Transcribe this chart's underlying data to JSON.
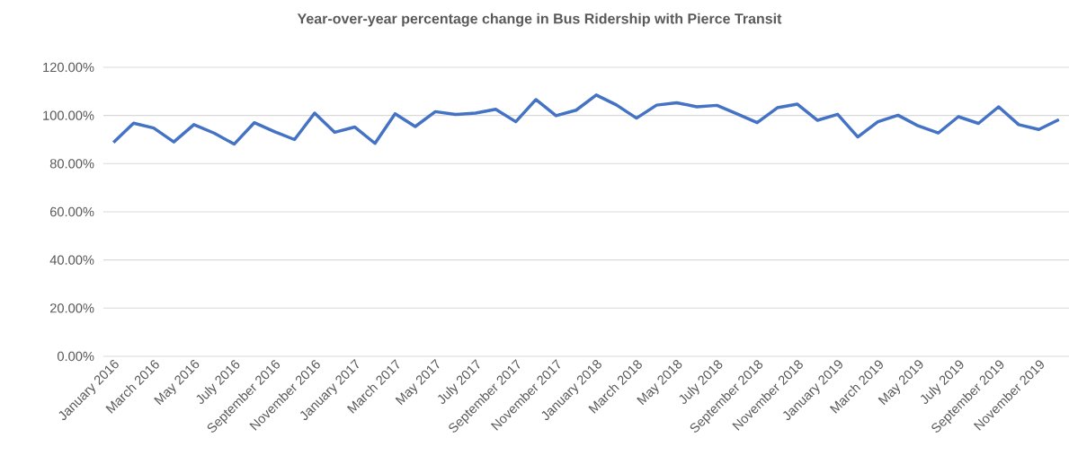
{
  "chart_data": {
    "type": "line",
    "title": "Year-over-year percentage change in Bus Ridership with Pierce Transit",
    "categories": [
      "January 2016",
      null,
      "March 2016",
      null,
      "May 2016",
      null,
      "July 2016",
      null,
      "September 2016",
      null,
      "November 2016",
      null,
      "January 2017",
      null,
      "March 2017",
      null,
      "May 2017",
      null,
      "July 2017",
      null,
      "September 2017",
      null,
      "November 2017",
      null,
      "January 2018",
      null,
      "March 2018",
      null,
      "May 2018",
      null,
      "July 2018",
      null,
      "September 2018",
      null,
      "November 2018",
      null,
      "January 2019",
      null,
      "March 2019",
      null,
      "May 2019",
      null,
      "July 2019",
      null,
      "September 2019",
      null,
      "November 2019",
      null
    ],
    "values": [
      88.8,
      96.8,
      94.8,
      89.0,
      96.2,
      92.7,
      88.1,
      97.0,
      93.3,
      90.0,
      101.0,
      93.0,
      95.2,
      88.4,
      100.7,
      95.4,
      101.6,
      100.4,
      101.0,
      102.6,
      97.4,
      106.6,
      99.9,
      102.2,
      108.5,
      104.4,
      98.9,
      104.3,
      105.3,
      103.6,
      104.2,
      100.7,
      97.0,
      103.2,
      104.7,
      98.0,
      100.5,
      91.1,
      97.4,
      100.1,
      95.7,
      92.7,
      99.5,
      96.7,
      103.6,
      96.2,
      94.2,
      98.3
    ],
    "color": "#4472c4",
    "ylim": [
      0,
      120
    ],
    "yticks": [
      {
        "value": 0,
        "label": "0.00%"
      },
      {
        "value": 20,
        "label": "20.00%"
      },
      {
        "value": 40,
        "label": "40.00%"
      },
      {
        "value": 60,
        "label": "60.00%"
      },
      {
        "value": 80,
        "label": "80.00%"
      },
      {
        "value": 100,
        "label": "100.00%"
      },
      {
        "value": 120,
        "label": "120.00%"
      }
    ],
    "grid": "y",
    "marker": "none",
    "line_style": "solid"
  }
}
